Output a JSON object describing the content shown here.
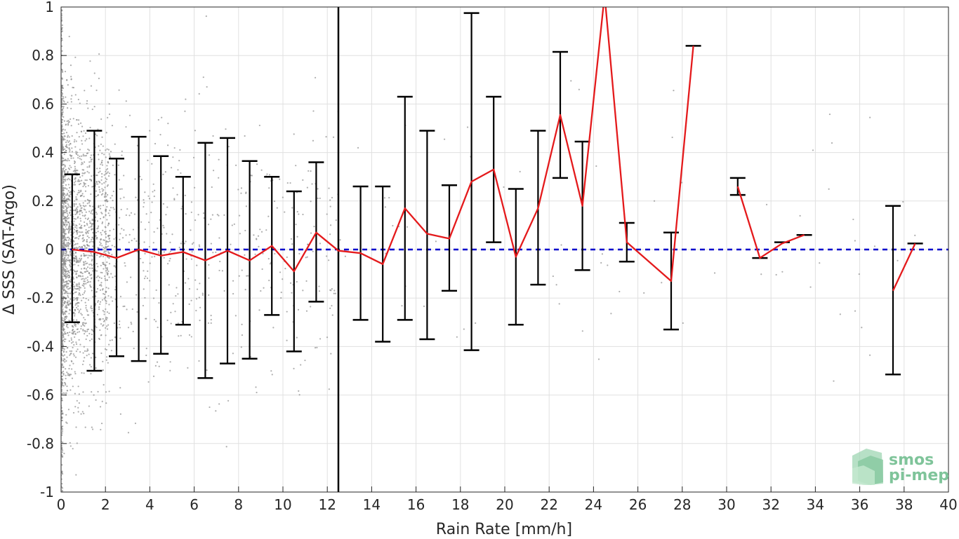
{
  "chart_data": {
    "type": "line",
    "xlabel": "Rain Rate [mm/h]",
    "ylabel": "Δ SSS (SAT-Argo)",
    "xlim": [
      0,
      40
    ],
    "ylim": [
      -1,
      1
    ],
    "x_ticks": [
      0,
      2,
      4,
      6,
      8,
      10,
      12,
      14,
      16,
      18,
      20,
      22,
      24,
      26,
      28,
      30,
      32,
      34,
      36,
      38,
      40
    ],
    "y_ticks": [
      -1,
      -0.8,
      -0.6,
      -0.4,
      -0.2,
      0,
      0.2,
      0.4,
      0.6,
      0.8,
      1
    ],
    "y_tick_labels": [
      "-1",
      "-0.8",
      "-0.6",
      "-0.4",
      "-0.2",
      "0",
      "0.2",
      "0.4",
      "0.6",
      "0.8",
      "1"
    ],
    "grid": true,
    "reference_line": {
      "y": 0,
      "style": "dashed",
      "color": "#0000cc"
    },
    "vertical_line": {
      "x": 12.5,
      "color": "#000000"
    },
    "colors": {
      "mean_line": "#e41a1c",
      "error_bars": "#000000",
      "scatter": "#8c8c8c",
      "axes": "#262626",
      "grid": "#e0e0e0"
    },
    "series": [
      {
        "type": "line_with_errorbars",
        "segments": [
          [
            {
              "x": 0.5,
              "y": 0.0,
              "upper": 0.31,
              "lower": -0.3
            },
            {
              "x": 1.5,
              "y": -0.01,
              "upper": 0.49,
              "lower": -0.5
            },
            {
              "x": 2.5,
              "y": -0.035,
              "upper": 0.375,
              "lower": -0.44
            },
            {
              "x": 3.5,
              "y": 0.0,
              "upper": 0.465,
              "lower": -0.46
            },
            {
              "x": 4.5,
              "y": -0.025,
              "upper": 0.385,
              "lower": -0.43
            },
            {
              "x": 5.5,
              "y": -0.01,
              "upper": 0.3,
              "lower": -0.31
            },
            {
              "x": 6.5,
              "y": -0.045,
              "upper": 0.44,
              "lower": -0.53
            },
            {
              "x": 7.5,
              "y": -0.005,
              "upper": 0.46,
              "lower": -0.47
            },
            {
              "x": 8.5,
              "y": -0.045,
              "upper": 0.365,
              "lower": -0.45
            },
            {
              "x": 9.5,
              "y": 0.015,
              "upper": 0.3,
              "lower": -0.27
            },
            {
              "x": 10.5,
              "y": -0.09,
              "upper": 0.24,
              "lower": -0.42
            },
            {
              "x": 11.5,
              "y": 0.07,
              "upper": 0.36,
              "lower": -0.215
            },
            {
              "x": 12.5,
              "y": -0.005,
              "upper": null,
              "lower": null
            },
            {
              "x": 13.5,
              "y": -0.015,
              "upper": 0.26,
              "lower": -0.29
            },
            {
              "x": 14.5,
              "y": -0.06,
              "upper": 0.26,
              "lower": -0.38
            },
            {
              "x": 15.5,
              "y": 0.17,
              "upper": 0.63,
              "lower": -0.29
            },
            {
              "x": 16.5,
              "y": 0.065,
              "upper": 0.49,
              "lower": -0.37
            },
            {
              "x": 17.5,
              "y": 0.045,
              "upper": 0.265,
              "lower": -0.17
            },
            {
              "x": 18.5,
              "y": 0.28,
              "upper": 0.975,
              "lower": -0.415
            },
            {
              "x": 19.5,
              "y": 0.33,
              "upper": 0.63,
              "lower": 0.03
            },
            {
              "x": 20.5,
              "y": -0.03,
              "upper": 0.25,
              "lower": -0.31
            },
            {
              "x": 21.5,
              "y": 0.17,
              "upper": 0.49,
              "lower": -0.145
            },
            {
              "x": 22.5,
              "y": 0.555,
              "upper": 0.815,
              "lower": 0.295
            },
            {
              "x": 23.5,
              "y": 0.18,
              "upper": 0.445,
              "lower": -0.085
            },
            {
              "x": 24.5,
              "y": 1.05,
              "upper": null,
              "lower": null
            },
            {
              "x": 25.5,
              "y": 0.03,
              "upper": 0.11,
              "lower": -0.05
            },
            {
              "x": 27.5,
              "y": -0.13,
              "upper": 0.07,
              "lower": -0.33
            },
            {
              "x": 28.5,
              "y": 0.84,
              "upper": 0.84,
              "lower": null
            }
          ],
          [
            {
              "x": 30.5,
              "y": 0.26,
              "upper": 0.295,
              "lower": 0.225
            },
            {
              "x": 31.5,
              "y": -0.035,
              "upper": -0.035,
              "lower": null
            },
            {
              "x": 32.5,
              "y": 0.025,
              "upper": 0.03,
              "lower": null
            },
            {
              "x": 33.5,
              "y": 0.06,
              "upper": 0.06,
              "lower": null
            }
          ],
          [
            {
              "x": 37.5,
              "y": -0.17,
              "upper": 0.18,
              "lower": -0.515
            },
            {
              "x": 38.5,
              "y": 0.025,
              "upper": 0.025,
              "lower": null
            }
          ]
        ]
      }
    ],
    "scatter_density_note": "dense grey points concentrated near x=0, sparse beyond"
  },
  "logo": {
    "line1": "smos",
    "line2": "pi-mep"
  }
}
